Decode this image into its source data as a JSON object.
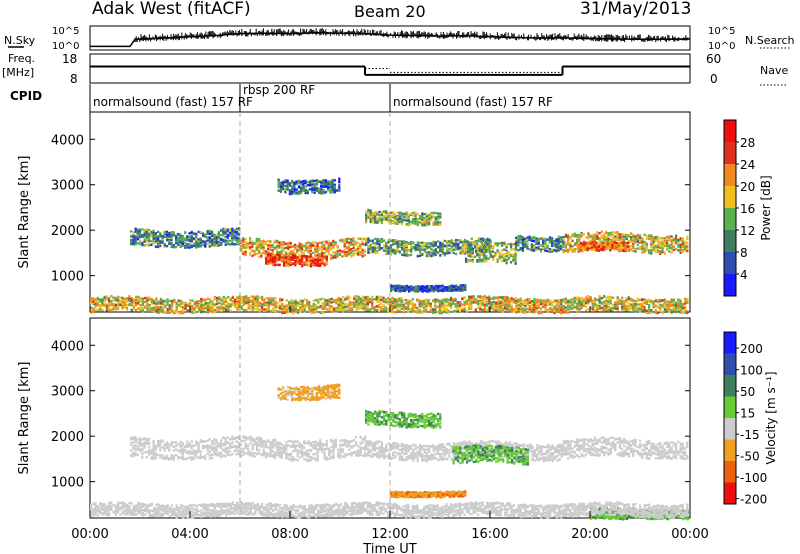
{
  "header": {
    "station": "Adak West (fitACF)",
    "beam": "Beam 20",
    "date": "31/May/2013"
  },
  "side_labels": {
    "nsky": "N.Sky",
    "nsearch": "N.Search",
    "freq": "Freq.",
    "freq_unit": "[MHz]",
    "nave": "Nave",
    "cpid": "CPID"
  },
  "chart_data": [
    {
      "type": "line",
      "name": "noise-panel",
      "ylabel_left": "N.Sky",
      "ylabel_right": "N.Search",
      "left_ticks": [
        "10^5",
        "10^0"
      ],
      "right_ticks": [
        "10^5",
        "10^0"
      ],
      "nsky_x": [
        0,
        1.6,
        1.8,
        3,
        4,
        5,
        6,
        7,
        8,
        9,
        10,
        11,
        12,
        13,
        14,
        15,
        16,
        17,
        18,
        19,
        20,
        21,
        22,
        23,
        24
      ],
      "nsky_y": [
        0.15,
        0.15,
        0.45,
        0.5,
        0.55,
        0.6,
        0.68,
        0.7,
        0.68,
        0.72,
        0.7,
        0.68,
        0.62,
        0.6,
        0.58,
        0.6,
        0.55,
        0.52,
        0.5,
        0.5,
        0.48,
        0.46,
        0.45,
        0.45,
        0.46
      ]
    },
    {
      "type": "line",
      "name": "frequency-panel",
      "ylabel_left": "Freq. [MHz]",
      "ylabel_right": "Nave",
      "left_ticks": [
        18,
        8
      ],
      "right_ticks": [
        60,
        0
      ],
      "freq_segments": [
        {
          "start": 0,
          "end": 11,
          "mhz": 13.7
        },
        {
          "start": 11,
          "end": 18.9,
          "mhz": 10.8
        },
        {
          "start": 18.9,
          "end": 24,
          "mhz": 13.7
        }
      ],
      "nave_segments": [
        {
          "start": 0,
          "end": 11,
          "value": 35
        },
        {
          "start": 11,
          "end": 12,
          "value": 30
        },
        {
          "start": 12,
          "end": 18.9,
          "value": 22
        },
        {
          "start": 18.9,
          "end": 24,
          "value": 35
        }
      ]
    },
    {
      "type": "table",
      "name": "cpid-panel",
      "label": "CPID",
      "segments": [
        {
          "start": 0,
          "label": "normalsound (fast) 157 RF"
        },
        {
          "start": 6,
          "label": "rbsp 200 RF"
        },
        {
          "start": 12,
          "label": "normalsound (fast) 157 RF"
        }
      ]
    },
    {
      "type": "heatmap",
      "name": "power-panel",
      "ylabel": "Slant Range [km]",
      "yticks": [
        1000,
        2000,
        3000,
        4000
      ],
      "ylim": [
        200,
        4600
      ],
      "xlim": [
        0,
        24
      ],
      "colorbar_label": "Power [dB]",
      "colorbar_ticks": [
        4,
        8,
        12,
        16,
        20,
        24,
        28
      ],
      "colorbar_range": [
        0,
        32
      ],
      "colors": [
        "#1a1aff",
        "#2f4fb0",
        "#3f7f5f",
        "#59b04f",
        "#f0c020",
        "#f08a20",
        "#e03020",
        "#ee1010"
      ],
      "bands": [
        {
          "start": 1.6,
          "end": 6.0,
          "range_center": 1850,
          "halfwidth": 180,
          "power": 10
        },
        {
          "start": 6.0,
          "end": 11.0,
          "range_center": 1600,
          "halfwidth": 200,
          "power": 20
        },
        {
          "start": 7.0,
          "end": 9.5,
          "range_center": 1380,
          "halfwidth": 120,
          "power": 26
        },
        {
          "start": 11.0,
          "end": 14.0,
          "range_center": 2300,
          "halfwidth": 140,
          "power": 14
        },
        {
          "start": 11.0,
          "end": 16.0,
          "range_center": 1650,
          "halfwidth": 160,
          "power": 12
        },
        {
          "start": 15.0,
          "end": 17.0,
          "range_center": 1500,
          "halfwidth": 220,
          "power": 14
        },
        {
          "start": 17.0,
          "end": 18.9,
          "range_center": 1750,
          "halfwidth": 160,
          "power": 10
        },
        {
          "start": 18.9,
          "end": 24.0,
          "range_center": 1750,
          "halfwidth": 200,
          "power": 18
        },
        {
          "start": 19.5,
          "end": 21.5,
          "range_center": 1650,
          "halfwidth": 100,
          "power": 24
        },
        {
          "start": 7.5,
          "end": 10.0,
          "range_center": 3000,
          "halfwidth": 150,
          "power": 8
        },
        {
          "start": 12.0,
          "end": 15.0,
          "range_center": 750,
          "halfwidth": 60,
          "power": 6
        },
        {
          "start": 0.0,
          "end": 24.0,
          "range_center": 380,
          "halfwidth": 160,
          "power": 18
        }
      ]
    },
    {
      "type": "heatmap",
      "name": "velocity-panel",
      "ylabel": "Slant Range [km]",
      "yticks": [
        1000,
        2000,
        3000,
        4000
      ],
      "ylim": [
        200,
        4600
      ],
      "xlim": [
        0,
        24
      ],
      "xticks": [
        "00:00",
        "04:00",
        "08:00",
        "12:00",
        "16:00",
        "20:00",
        "00:00"
      ],
      "xlabel": "Time UT",
      "colorbar_label": "Velocity [m s⁻¹]",
      "colorbar_ticks": [
        200,
        100,
        50,
        15,
        -15,
        -50,
        -100,
        -200
      ],
      "colors": [
        "#1a1aff",
        "#2f4fb0",
        "#3f7f5f",
        "#66cc33",
        "#cccccc",
        "#f0a020",
        "#ee6010",
        "#ee1010"
      ],
      "bands": [
        {
          "start": 1.6,
          "end": 11.0,
          "range_center": 1750,
          "halfwidth": 220,
          "velocity": 0
        },
        {
          "start": 11.0,
          "end": 14.0,
          "range_center": 2400,
          "halfwidth": 160,
          "velocity": 30
        },
        {
          "start": 11.0,
          "end": 18.9,
          "range_center": 1700,
          "halfwidth": 180,
          "velocity": 0
        },
        {
          "start": 14.5,
          "end": 17.5,
          "range_center": 1600,
          "halfwidth": 180,
          "velocity": 30
        },
        {
          "start": 18.9,
          "end": 24.0,
          "range_center": 1750,
          "halfwidth": 200,
          "velocity": 0
        },
        {
          "start": 12.0,
          "end": 15.0,
          "range_center": 750,
          "halfwidth": 60,
          "velocity": -30
        },
        {
          "start": 7.5,
          "end": 10.0,
          "range_center": 3000,
          "halfwidth": 150,
          "velocity": -20
        },
        {
          "start": 20.0,
          "end": 24.0,
          "range_center": 300,
          "halfwidth": 120,
          "velocity": 30
        },
        {
          "start": 0.0,
          "end": 24.0,
          "range_center": 400,
          "halfwidth": 140,
          "velocity": 0
        }
      ]
    }
  ]
}
